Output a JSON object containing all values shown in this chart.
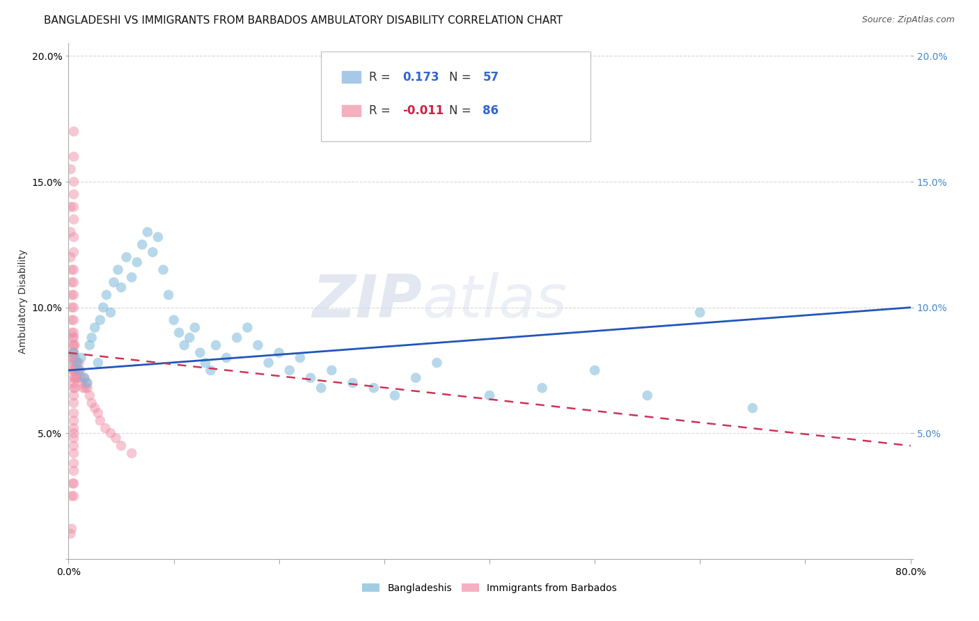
{
  "title": "BANGLADESHI VS IMMIGRANTS FROM BARBADOS AMBULATORY DISABILITY CORRELATION CHART",
  "source": "Source: ZipAtlas.com",
  "ylabel": "Ambulatory Disability",
  "watermark_zip": "ZIP",
  "watermark_atlas": "atlas",
  "xlim": [
    0.0,
    0.8
  ],
  "ylim": [
    0.0,
    0.205
  ],
  "xticks": [
    0.0,
    0.1,
    0.2,
    0.3,
    0.4,
    0.5,
    0.6,
    0.7,
    0.8
  ],
  "yticks": [
    0.0,
    0.05,
    0.1,
    0.15,
    0.2
  ],
  "blue_scatter_x": [
    0.005,
    0.008,
    0.01,
    0.012,
    0.015,
    0.018,
    0.02,
    0.022,
    0.025,
    0.028,
    0.03,
    0.033,
    0.036,
    0.04,
    0.043,
    0.047,
    0.05,
    0.055,
    0.06,
    0.065,
    0.07,
    0.075,
    0.08,
    0.085,
    0.09,
    0.095,
    0.1,
    0.105,
    0.11,
    0.115,
    0.12,
    0.125,
    0.13,
    0.135,
    0.14,
    0.15,
    0.16,
    0.17,
    0.18,
    0.19,
    0.2,
    0.21,
    0.22,
    0.23,
    0.24,
    0.25,
    0.27,
    0.29,
    0.31,
    0.33,
    0.35,
    0.4,
    0.45,
    0.5,
    0.55,
    0.6,
    0.65
  ],
  "blue_scatter_y": [
    0.082,
    0.078,
    0.075,
    0.08,
    0.072,
    0.07,
    0.085,
    0.088,
    0.092,
    0.078,
    0.095,
    0.1,
    0.105,
    0.098,
    0.11,
    0.115,
    0.108,
    0.12,
    0.112,
    0.118,
    0.125,
    0.13,
    0.122,
    0.128,
    0.115,
    0.105,
    0.095,
    0.09,
    0.085,
    0.088,
    0.092,
    0.082,
    0.078,
    0.075,
    0.085,
    0.08,
    0.088,
    0.092,
    0.085,
    0.078,
    0.082,
    0.075,
    0.08,
    0.072,
    0.068,
    0.075,
    0.07,
    0.068,
    0.065,
    0.072,
    0.078,
    0.065,
    0.068,
    0.075,
    0.065,
    0.098,
    0.06
  ],
  "pink_scatter_x": [
    0.002,
    0.002,
    0.002,
    0.002,
    0.003,
    0.003,
    0.003,
    0.003,
    0.003,
    0.003,
    0.004,
    0.004,
    0.004,
    0.004,
    0.004,
    0.004,
    0.005,
    0.005,
    0.005,
    0.005,
    0.005,
    0.005,
    0.005,
    0.005,
    0.005,
    0.005,
    0.005,
    0.005,
    0.005,
    0.005,
    0.005,
    0.005,
    0.005,
    0.005,
    0.005,
    0.005,
    0.005,
    0.005,
    0.005,
    0.005,
    0.006,
    0.006,
    0.006,
    0.006,
    0.006,
    0.007,
    0.007,
    0.007,
    0.008,
    0.008,
    0.009,
    0.01,
    0.011,
    0.012,
    0.013,
    0.014,
    0.015,
    0.016,
    0.017,
    0.018,
    0.02,
    0.022,
    0.025,
    0.028,
    0.03,
    0.035,
    0.04,
    0.045,
    0.05,
    0.06,
    0.002,
    0.003,
    0.003,
    0.004,
    0.005,
    0.005,
    0.005,
    0.005,
    0.005,
    0.005,
    0.005,
    0.005,
    0.005,
    0.005,
    0.005,
    0.005
  ],
  "pink_scatter_y": [
    0.155,
    0.14,
    0.13,
    0.12,
    0.115,
    0.11,
    0.105,
    0.1,
    0.095,
    0.09,
    0.088,
    0.085,
    0.082,
    0.08,
    0.078,
    0.075,
    0.17,
    0.16,
    0.15,
    0.145,
    0.14,
    0.135,
    0.128,
    0.122,
    0.115,
    0.11,
    0.105,
    0.1,
    0.095,
    0.09,
    0.088,
    0.085,
    0.082,
    0.08,
    0.078,
    0.075,
    0.072,
    0.07,
    0.068,
    0.065,
    0.085,
    0.08,
    0.075,
    0.072,
    0.068,
    0.078,
    0.075,
    0.072,
    0.078,
    0.072,
    0.075,
    0.078,
    0.075,
    0.072,
    0.07,
    0.068,
    0.072,
    0.068,
    0.07,
    0.068,
    0.065,
    0.062,
    0.06,
    0.058,
    0.055,
    0.052,
    0.05,
    0.048,
    0.045,
    0.042,
    0.01,
    0.012,
    0.025,
    0.03,
    0.062,
    0.058,
    0.055,
    0.052,
    0.05,
    0.048,
    0.045,
    0.042,
    0.038,
    0.035,
    0.03,
    0.025
  ],
  "blue_line_x": [
    0.0,
    0.8
  ],
  "blue_line_y": [
    0.075,
    0.1
  ],
  "pink_line_x": [
    0.0,
    0.8
  ],
  "pink_line_y": [
    0.082,
    0.045
  ],
  "blue_dot_color": "#7ab8d9",
  "pink_dot_color": "#f090a8",
  "blue_line_color": "#2255bb",
  "pink_line_color": "#cc3355",
  "background_color": "#ffffff",
  "grid_color": "#cccccc",
  "title_fontsize": 11,
  "label_fontsize": 10,
  "tick_fontsize": 10,
  "source_fontsize": 9,
  "legend_blue_color": "#a8c8e8",
  "legend_pink_color": "#f4b0c0",
  "legend_R_blue": "0.173",
  "legend_N_blue": "57",
  "legend_R_pink": "-0.011",
  "legend_N_pink": "86"
}
